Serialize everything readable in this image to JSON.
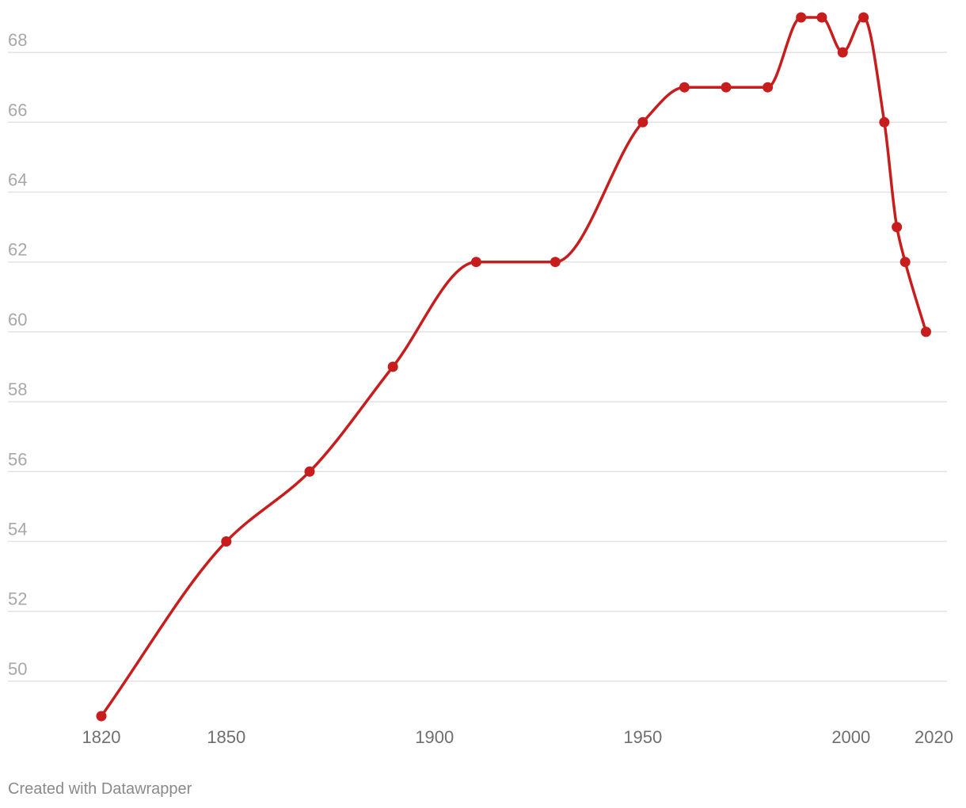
{
  "footer": {
    "credit": "Created with Datawrapper"
  },
  "colors": {
    "line": "#c71e1d",
    "grid": "#e3e3e3",
    "y_tick_text": "#a8a8a8",
    "x_tick_text": "#6f6f6f"
  },
  "chart_data": {
    "type": "line",
    "title": "",
    "xlabel": "",
    "ylabel": "",
    "x": [
      1820,
      1850,
      1870,
      1890,
      1910,
      1929,
      1950,
      1960,
      1970,
      1980,
      1988,
      1993,
      1998,
      2003,
      2008,
      2011,
      2013,
      2018
    ],
    "series": [
      {
        "values": [
          49,
          54,
          56,
          59,
          62,
          62,
          66,
          67,
          67,
          67,
          69,
          69,
          68,
          69,
          66,
          63,
          62,
          60
        ],
        "markers": true,
        "curve": "smooth"
      }
    ],
    "x_ticks": [
      1820,
      1850,
      1900,
      1950,
      2000,
      2020
    ],
    "x_tick_labels": [
      "1820",
      "1850",
      "1900",
      "1950",
      "2000",
      "2020"
    ],
    "y_ticks": [
      50,
      52,
      54,
      56,
      58,
      60,
      62,
      64,
      66,
      68
    ],
    "y_tick_labels": [
      "50",
      "52",
      "54",
      "56",
      "58",
      "60",
      "62",
      "64",
      "66",
      "68"
    ],
    "xlim": [
      1820,
      2020
    ],
    "ylim": [
      49,
      69
    ],
    "grid": "horizontal",
    "legend": "none"
  }
}
